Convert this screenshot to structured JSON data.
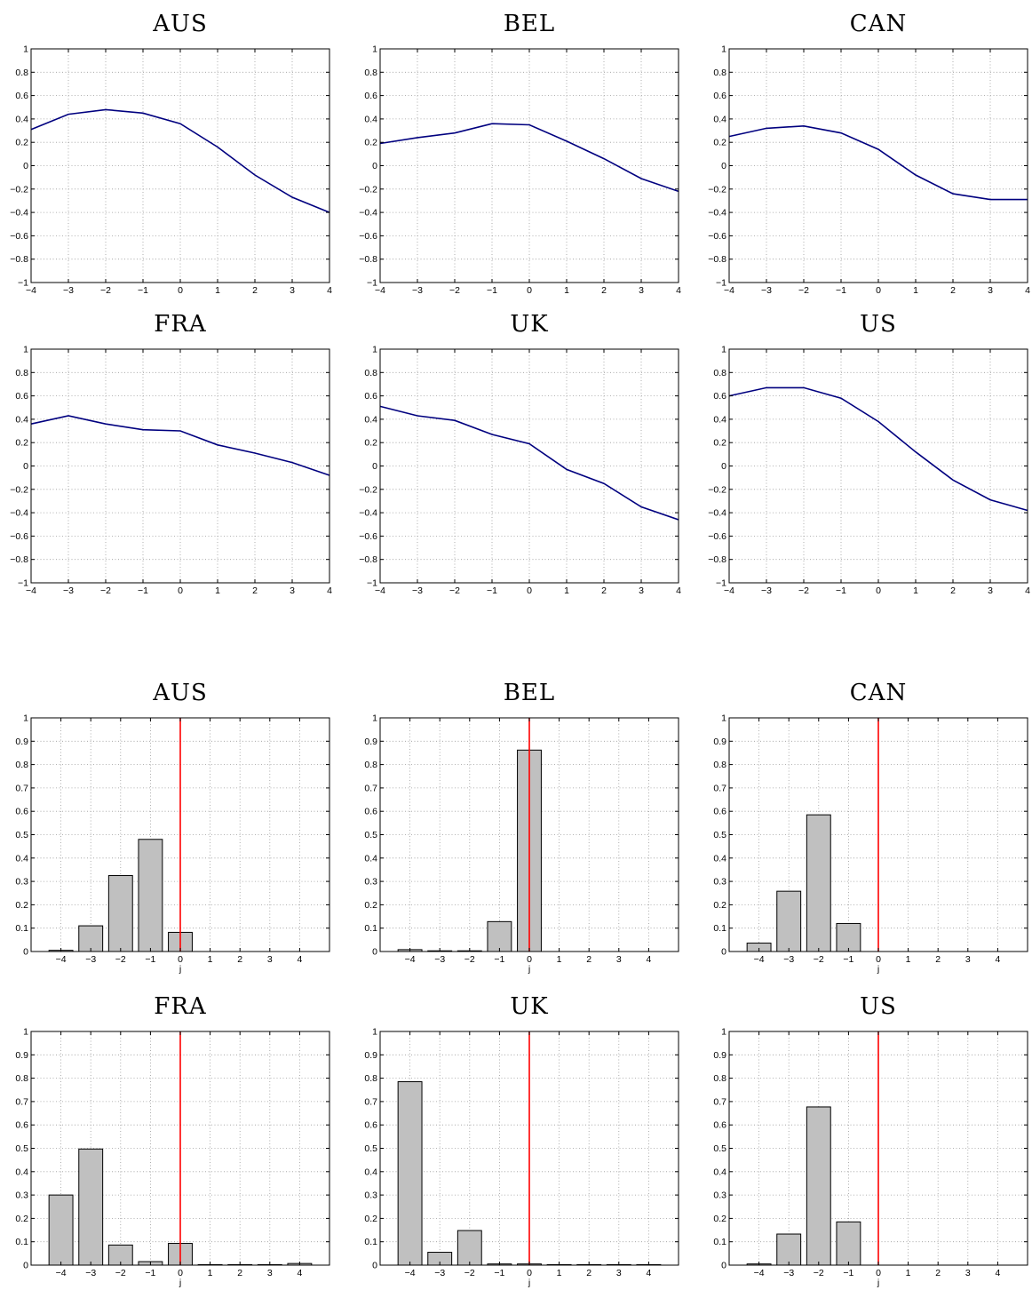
{
  "chart_data": [
    {
      "type": "line",
      "title": "AUS",
      "x": [
        -4,
        -3,
        -2,
        -1,
        0,
        1,
        2,
        3,
        4
      ],
      "xlim": [
        -4,
        4
      ],
      "ylim": [
        -1,
        1
      ],
      "xticks": [
        "−4",
        "−3",
        "−2",
        "−1",
        "0",
        "1",
        "2",
        "3",
        "4"
      ],
      "yticks": [
        "−1",
        "−0.8",
        "−0.6",
        "−0.4",
        "−0.2",
        "0",
        "0.2",
        "0.4",
        "0.6",
        "0.8",
        "1"
      ],
      "grid": true,
      "color": "#00007f",
      "values": [
        0.31,
        0.44,
        0.48,
        0.45,
        0.36,
        0.16,
        -0.08,
        -0.27,
        -0.4
      ]
    },
    {
      "type": "line",
      "title": "BEL",
      "x": [
        -4,
        -3,
        -2,
        -1,
        0,
        1,
        2,
        3,
        4
      ],
      "xlim": [
        -4,
        4
      ],
      "ylim": [
        -1,
        1
      ],
      "xticks": [
        "−4",
        "−3",
        "−2",
        "−1",
        "0",
        "1",
        "2",
        "3",
        "4"
      ],
      "yticks": [
        "−1",
        "−0.8",
        "−0.6",
        "−0.4",
        "−0.2",
        "0",
        "0.2",
        "0.4",
        "0.6",
        "0.8",
        "1"
      ],
      "grid": true,
      "color": "#00007f",
      "values": [
        0.19,
        0.24,
        0.28,
        0.36,
        0.35,
        0.21,
        0.06,
        -0.11,
        -0.22
      ]
    },
    {
      "type": "line",
      "title": "CAN",
      "x": [
        -4,
        -3,
        -2,
        -1,
        0,
        1,
        2,
        3,
        4
      ],
      "xlim": [
        -4,
        4
      ],
      "ylim": [
        -1,
        1
      ],
      "xticks": [
        "−4",
        "−3",
        "−2",
        "−1",
        "0",
        "1",
        "2",
        "3",
        "4"
      ],
      "yticks": [
        "−1",
        "−0.8",
        "−0.6",
        "−0.4",
        "−0.2",
        "0",
        "0.2",
        "0.4",
        "0.6",
        "0.8",
        "1"
      ],
      "grid": true,
      "color": "#00007f",
      "values": [
        0.25,
        0.32,
        0.34,
        0.28,
        0.14,
        -0.08,
        -0.24,
        -0.29,
        -0.29
      ]
    },
    {
      "type": "line",
      "title": "FRA",
      "x": [
        -4,
        -3,
        -2,
        -1,
        0,
        1,
        2,
        3,
        4
      ],
      "xlim": [
        -4,
        4
      ],
      "ylim": [
        -1,
        1
      ],
      "xticks": [
        "−4",
        "−3",
        "−2",
        "−1",
        "0",
        "1",
        "2",
        "3",
        "4"
      ],
      "yticks": [
        "−1",
        "−0.8",
        "−0.6",
        "−0.4",
        "−0.2",
        "0",
        "0.2",
        "0.4",
        "0.6",
        "0.8",
        "1"
      ],
      "grid": true,
      "color": "#00007f",
      "values": [
        0.36,
        0.43,
        0.36,
        0.31,
        0.3,
        0.18,
        0.11,
        0.03,
        -0.08
      ]
    },
    {
      "type": "line",
      "title": "UK",
      "x": [
        -4,
        -3,
        -2,
        -1,
        0,
        1,
        2,
        3,
        4
      ],
      "xlim": [
        -4,
        4
      ],
      "ylim": [
        -1,
        1
      ],
      "xticks": [
        "−4",
        "−3",
        "−2",
        "−1",
        "0",
        "1",
        "2",
        "3",
        "4"
      ],
      "yticks": [
        "−1",
        "−0.8",
        "−0.6",
        "−0.4",
        "−0.2",
        "0",
        "0.2",
        "0.4",
        "0.6",
        "0.8",
        "1"
      ],
      "grid": true,
      "color": "#00007f",
      "values": [
        0.51,
        0.43,
        0.39,
        0.27,
        0.19,
        -0.03,
        -0.15,
        -0.35,
        -0.46
      ]
    },
    {
      "type": "line",
      "title": "US",
      "x": [
        -4,
        -3,
        -2,
        -1,
        0,
        1,
        2,
        3,
        4
      ],
      "xlim": [
        -4,
        4
      ],
      "ylim": [
        -1,
        1
      ],
      "xticks": [
        "−4",
        "−3",
        "−2",
        "−1",
        "0",
        "1",
        "2",
        "3",
        "4"
      ],
      "yticks": [
        "−1",
        "−0.8",
        "−0.6",
        "−0.4",
        "−0.2",
        "0",
        "0.2",
        "0.4",
        "0.6",
        "0.8",
        "1"
      ],
      "grid": true,
      "color": "#00007f",
      "values": [
        0.6,
        0.67,
        0.67,
        0.58,
        0.38,
        0.12,
        -0.12,
        -0.29,
        -0.38
      ]
    },
    {
      "type": "bar",
      "title": "AUS",
      "xlabel": "j",
      "categories": [
        -4,
        -3,
        -2,
        -1,
        0,
        1,
        2,
        3,
        4
      ],
      "xlim": [
        -5,
        5
      ],
      "ylim": [
        0,
        1
      ],
      "xticks": [
        "−4",
        "−3",
        "−2",
        "−1",
        "0",
        "1",
        "2",
        "3",
        "4"
      ],
      "yticks": [
        "0",
        "0.1",
        "0.2",
        "0.3",
        "0.4",
        "0.5",
        "0.6",
        "0.7",
        "0.8",
        "0.9",
        "1"
      ],
      "grid": true,
      "bar_color": "#c0c0c0",
      "reference_line_x": 0,
      "reference_line_color": "#ff0000",
      "values": [
        0.005,
        0.11,
        0.325,
        0.48,
        0.082,
        0,
        0,
        0,
        0
      ]
    },
    {
      "type": "bar",
      "title": "BEL",
      "xlabel": "j",
      "categories": [
        -4,
        -3,
        -2,
        -1,
        0,
        1,
        2,
        3,
        4
      ],
      "xlim": [
        -5,
        5
      ],
      "ylim": [
        0,
        1
      ],
      "xticks": [
        "−4",
        "−3",
        "−2",
        "−1",
        "0",
        "1",
        "2",
        "3",
        "4"
      ],
      "yticks": [
        "0",
        "0.1",
        "0.2",
        "0.3",
        "0.4",
        "0.5",
        "0.6",
        "0.7",
        "0.8",
        "0.9",
        "1"
      ],
      "grid": true,
      "bar_color": "#c0c0c0",
      "reference_line_x": 0,
      "reference_line_color": "#ff0000",
      "values": [
        0.008,
        0.003,
        0.003,
        0.128,
        0.862,
        0,
        0,
        0,
        0
      ]
    },
    {
      "type": "bar",
      "title": "CAN",
      "xlabel": "j",
      "categories": [
        -4,
        -3,
        -2,
        -1,
        0,
        1,
        2,
        3,
        4
      ],
      "xlim": [
        -5,
        5
      ],
      "ylim": [
        0,
        1
      ],
      "xticks": [
        "−4",
        "−3",
        "−2",
        "−1",
        "0",
        "1",
        "2",
        "3",
        "4"
      ],
      "yticks": [
        "0",
        "0.1",
        "0.2",
        "0.3",
        "0.4",
        "0.5",
        "0.6",
        "0.7",
        "0.8",
        "0.9",
        "1"
      ],
      "grid": true,
      "bar_color": "#c0c0c0",
      "reference_line_x": 0,
      "reference_line_color": "#ff0000",
      "values": [
        0.036,
        0.258,
        0.585,
        0.12,
        0,
        0,
        0,
        0,
        0
      ]
    },
    {
      "type": "bar",
      "title": "FRA",
      "xlabel": "j",
      "categories": [
        -4,
        -3,
        -2,
        -1,
        0,
        1,
        2,
        3,
        4
      ],
      "xlim": [
        -5,
        5
      ],
      "ylim": [
        0,
        1
      ],
      "xticks": [
        "−4",
        "−3",
        "−2",
        "−1",
        "0",
        "1",
        "2",
        "3",
        "4"
      ],
      "yticks": [
        "0",
        "0.1",
        "0.2",
        "0.3",
        "0.4",
        "0.5",
        "0.6",
        "0.7",
        "0.8",
        "0.9",
        "1"
      ],
      "grid": true,
      "bar_color": "#c0c0c0",
      "reference_line_x": 0,
      "reference_line_color": "#ff0000",
      "values": [
        0.3,
        0.497,
        0.086,
        0.015,
        0.093,
        0.002,
        0.002,
        0.002,
        0.007
      ]
    },
    {
      "type": "bar",
      "title": "UK",
      "xlabel": "j",
      "categories": [
        -4,
        -3,
        -2,
        -1,
        0,
        1,
        2,
        3,
        4
      ],
      "xlim": [
        -5,
        5
      ],
      "ylim": [
        0,
        1
      ],
      "xticks": [
        "−4",
        "−3",
        "−2",
        "−1",
        "0",
        "1",
        "2",
        "3",
        "4"
      ],
      "yticks": [
        "0",
        "0.1",
        "0.2",
        "0.3",
        "0.4",
        "0.5",
        "0.6",
        "0.7",
        "0.8",
        "0.9",
        "1"
      ],
      "grid": true,
      "bar_color": "#c0c0c0",
      "reference_line_x": 0,
      "reference_line_color": "#ff0000",
      "values": [
        0.785,
        0.055,
        0.148,
        0.005,
        0.005,
        0.002,
        0.002,
        0.002,
        0.002
      ]
    },
    {
      "type": "bar",
      "title": "US",
      "xlabel": "j",
      "categories": [
        -4,
        -3,
        -2,
        -1,
        0,
        1,
        2,
        3,
        4
      ],
      "xlim": [
        -5,
        5
      ],
      "ylim": [
        0,
        1
      ],
      "xticks": [
        "−4",
        "−3",
        "−2",
        "−1",
        "0",
        "1",
        "2",
        "3",
        "4"
      ],
      "yticks": [
        "0",
        "0.1",
        "0.2",
        "0.3",
        "0.4",
        "0.5",
        "0.6",
        "0.7",
        "0.8",
        "0.9",
        "1"
      ],
      "grid": true,
      "bar_color": "#c0c0c0",
      "reference_line_x": 0,
      "reference_line_color": "#ff0000",
      "values": [
        0.005,
        0.133,
        0.677,
        0.185,
        0,
        0,
        0,
        0,
        0
      ]
    }
  ]
}
